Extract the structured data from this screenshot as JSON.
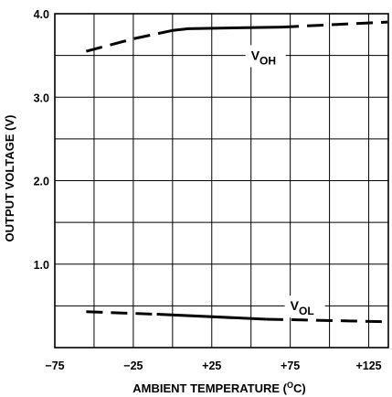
{
  "chart_data": {
    "type": "line",
    "title": "",
    "xlabel": "AMBIENT TEMPERATURE (",
    "xlabel_unit_sup": "O",
    "xlabel_unit_end": "C)",
    "ylabel": "OUTPUT VOLTAGE (V)",
    "xlim": [
      -75,
      137.5
    ],
    "ylim": [
      0,
      4.0
    ],
    "x_tick_labels": [
      {
        "value": -75,
        "label": "−75"
      },
      {
        "value": -25,
        "label": "−25"
      },
      {
        "value": 25,
        "label": "+25"
      },
      {
        "value": 75,
        "label": "+75"
      },
      {
        "value": 125,
        "label": "+125"
      }
    ],
    "y_tick_labels": [
      {
        "value": 1.0,
        "label": "1.0"
      },
      {
        "value": 2.0,
        "label": "2.0"
      },
      {
        "value": 3.0,
        "label": "3.0"
      },
      {
        "value": 4.0,
        "label": "4.0"
      }
    ],
    "grid": true,
    "x_grid_step": 25,
    "y_grid_step": 0.5,
    "series": [
      {
        "name": "VOH",
        "label_main": "V",
        "label_sub": "OH",
        "label_at": {
          "x": 50,
          "y": 3.47
        },
        "segments": [
          {
            "style": "dashed",
            "points": [
              [
                -55,
                3.55
              ],
              [
                -25,
                3.7
              ],
              [
                0,
                3.8
              ]
            ]
          },
          {
            "style": "solid",
            "points": [
              [
                0,
                3.8
              ],
              [
                10,
                3.82
              ],
              [
                70,
                3.84
              ]
            ]
          },
          {
            "style": "dashed",
            "points": [
              [
                70,
                3.84
              ],
              [
                137,
                3.9
              ]
            ]
          }
        ]
      },
      {
        "name": "VOL",
        "label_main": "V",
        "label_sub": "OL",
        "label_at": {
          "x": 75,
          "y": 0.47
        },
        "segments": [
          {
            "style": "dashed",
            "points": [
              [
                -55,
                0.43
              ],
              [
                -10,
                0.4
              ]
            ]
          },
          {
            "style": "solid",
            "points": [
              [
                -10,
                0.4
              ],
              [
                60,
                0.34
              ]
            ]
          },
          {
            "style": "dashed",
            "points": [
              [
                60,
                0.34
              ],
              [
                137,
                0.31
              ]
            ]
          }
        ]
      }
    ]
  }
}
